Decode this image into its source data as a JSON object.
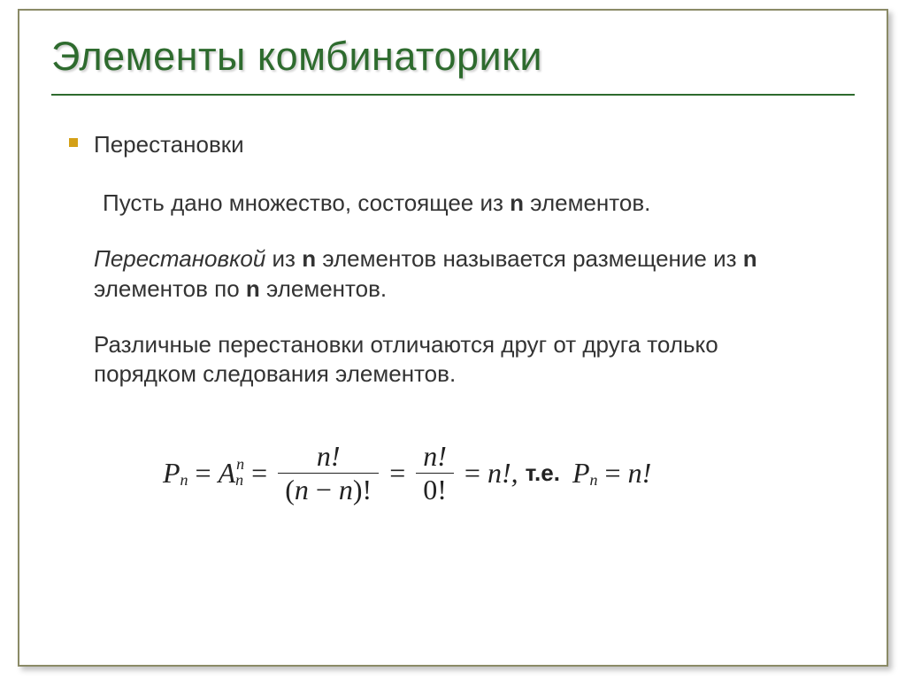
{
  "title": "Элементы комбинаторики",
  "subtitle": "Перестановки",
  "p1_a": "Пусть дано множество, состоящее из ",
  "p1_b": "n",
  "p1_c": " элементов.",
  "p2_a": "Перестановкой",
  "p2_b": " из ",
  "p2_c": "n",
  "p2_d": " элементов называется размещение из ",
  "p2_e": "n",
  "p2_f": " элементов по ",
  "p2_g": "n",
  "p2_h": " элементов.",
  "p3": "Различные перестановки отличаются друг от друга только порядком следования элементов.",
  "formula": {
    "P": "P",
    "n": "n",
    "A": "A",
    "frac1_num": "n!",
    "frac1_den_a": "(",
    "frac1_den_b": "n",
    "frac1_den_c": " − ",
    "frac1_den_d": "n",
    "frac1_den_e": ")!",
    "frac2_num": "n!",
    "frac2_den": "0!",
    "result1": "n!,",
    "te": "т.е.",
    "result2": "n!"
  },
  "colors": {
    "title": "#2e6b2e",
    "border": "#8a8a66",
    "bullet": "#d4a017",
    "text": "#333333",
    "formula": "#222222",
    "bg": "#ffffff"
  },
  "fontsizes": {
    "title": 45,
    "body": 26,
    "formula": 32,
    "subsup": 18
  }
}
